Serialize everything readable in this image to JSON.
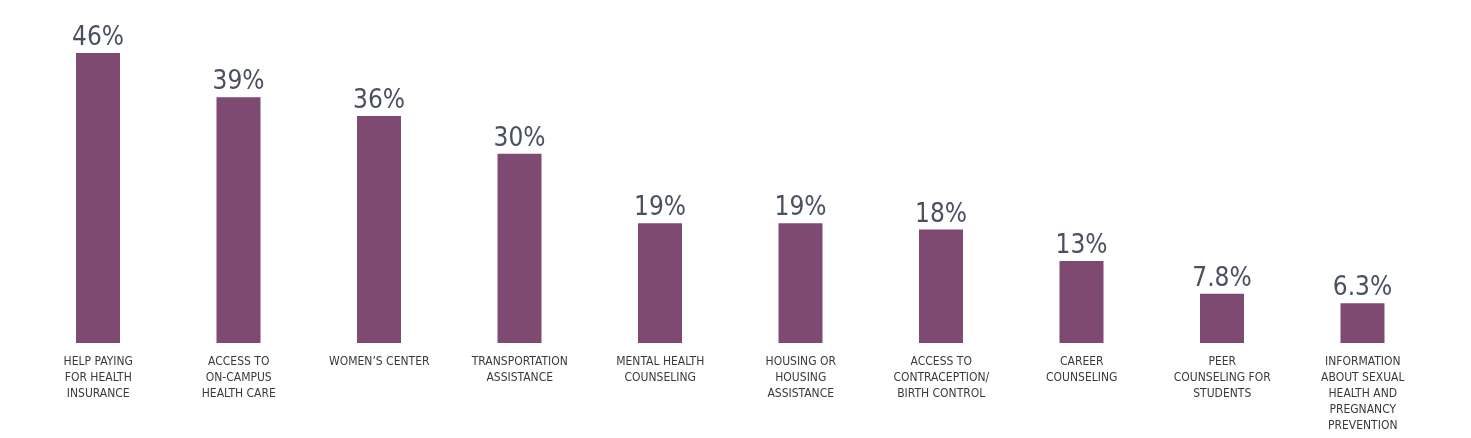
{
  "chart_data": {
    "type": "bar",
    "categories": [
      "HELP PAYING FOR HEALTH INSURANCE",
      "ACCESS TO ON-CAMPUS HEALTH CARE",
      "WOMEN’S CENTER",
      "TRANSPORTATION ASSISTANCE",
      "MENTAL HEALTH COUNSELING",
      "HOUSING OR HOUSING ASSISTANCE",
      "ACCESS TO CONTRACEPTION/ BIRTH CONTROL",
      "CAREER COUNSELING",
      "PEER COUNSELING FOR STUDENTS",
      "INFORMATION ABOUT SEXUAL HEALTH AND PREGNANCY PREVENTION"
    ],
    "values": [
      46,
      39,
      36,
      30,
      19,
      19,
      18,
      13,
      7.8,
      6.3
    ],
    "value_labels": [
      "46%",
      "39%",
      "36%",
      "30%",
      "19%",
      "19%",
      "18%",
      "13%",
      "7.8%",
      "6.3%"
    ],
    "color": "#7f4a72",
    "grid": false,
    "legend": false
  }
}
